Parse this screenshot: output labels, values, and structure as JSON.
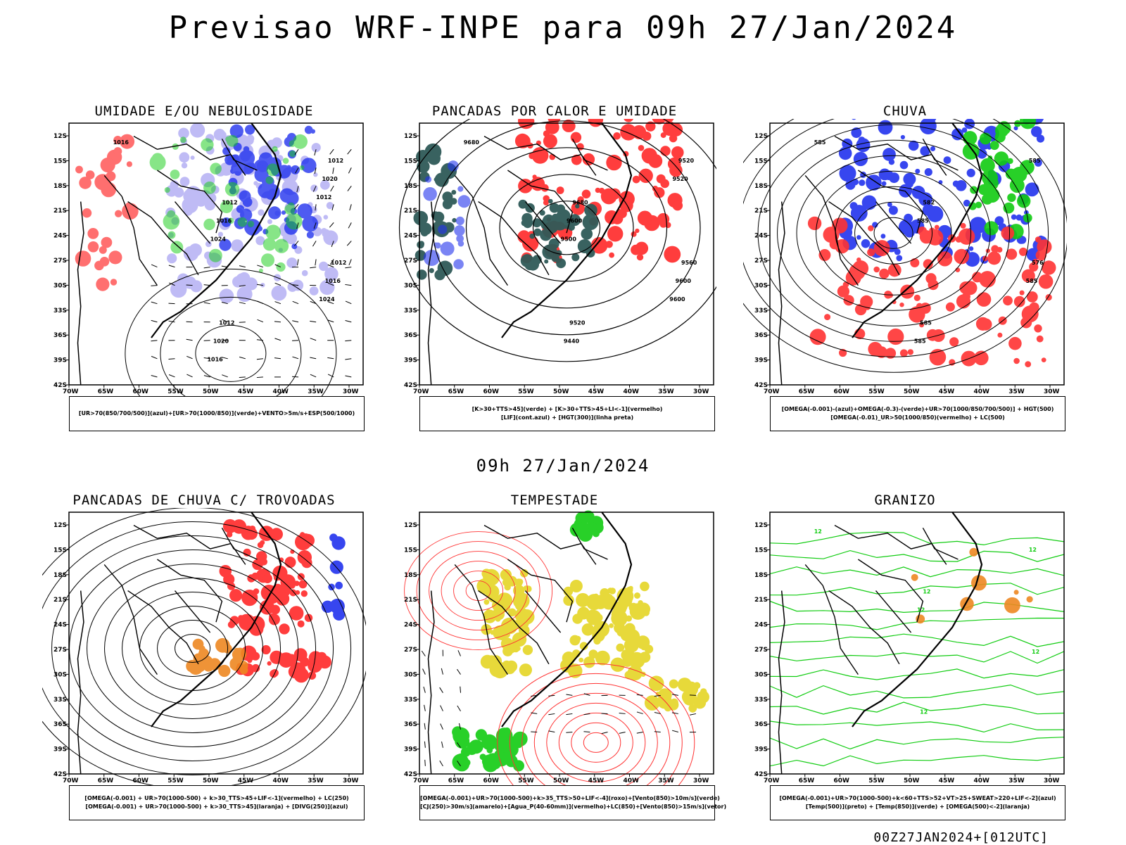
{
  "header": {
    "title": "Previsao WRF-INPE  para 09h 27/Jan/2024"
  },
  "mid_title": "09h 27/Jan/2024",
  "footer": "00Z27JAN2024+[012UTC]",
  "axes": {
    "lat": [
      "12S",
      "15S",
      "18S",
      "21S",
      "24S",
      "27S",
      "30S",
      "33S",
      "36S",
      "39S",
      "42S"
    ],
    "lon": [
      "70W",
      "65W",
      "60W",
      "55W",
      "50W",
      "45W",
      "40W",
      "35W",
      "30W"
    ]
  },
  "panels": [
    {
      "title": "UMIDADE E/OU NEBULOSIDADE",
      "legend": [
        "[UR>70(850/700/500)](azul)+[UR>70(1000/850)](verde)+VENTO>5m/s+ESP(500/1000)"
      ],
      "contour_labels": [
        "1016",
        "1012",
        "1012",
        "1012",
        "1012",
        "1016",
        "1016",
        "1020",
        "1020",
        "1024",
        "1024",
        "1016",
        "1012"
      ]
    },
    {
      "title": "PANCADAS POR CALOR E UMIDADE",
      "legend": [
        "[K>30+TTS>45](verde) + [K>30+TTS>45+LI<-1](vermelho)",
        "[LIF](cont.azul) + [HGT(300)](linha preta)"
      ],
      "contour_labels": [
        "9680",
        "9680",
        "9560",
        "9520",
        "9520",
        "9600",
        "9600",
        "9440",
        "9520",
        "9500",
        "9600"
      ]
    },
    {
      "title": "CHUVA",
      "legend": [
        "[OMEGA(-0.001)-(azul)+OMEGA(-0.3)-(verde)+UR>70(1000/850/700/500)] + HGT(500)",
        "[OMEGA(-0.01)_UR>50(1000/850)(vermelho) + LC(500)"
      ],
      "contour_labels": [
        "585",
        "582",
        "576",
        "585",
        "585",
        "585",
        "585",
        "585"
      ]
    },
    {
      "title": "PANCADAS DE CHUVA C/ TROVOADAS",
      "legend": [
        "[OMEGA(-0.001) + UR>70(1000-500) + k>30_TTS>45+LIF<-1](vermelho) + LC(250)",
        "[OMEGA(-0.001) + UR>70(1000-500) + k>30_TTS>45](laranja) + [DIVG(250)](azul)"
      ],
      "contour_labels": []
    },
    {
      "title": "TEMPESTADE",
      "legend": [
        "[OMEGA(-0.001)+UR>70(1000-500)+k>35_TTS>50+LIF<-4](roxo)+[Vento(850)>10m/s](verde)",
        "[CJ(250)>30m/s](amarelo)+[Agua_P(40-60mm)](vermelho)+LC(850)+[Vento(850)>15m/s](vetor)"
      ],
      "contour_labels": []
    },
    {
      "title": "GRANIZO",
      "legend": [
        "[OMEGA(-0.001)+UR>70(1000-500)+k<60+TTS>52+VT>25+SWEAT>220+LIF<-2](azul)",
        "[Temp(500)](preto) + [Temp(850)](verde) + [OMEGA(500)<-2](laranja)"
      ],
      "contour_labels": [
        "12",
        "12",
        "12",
        "12",
        "12",
        "12"
      ]
    }
  ],
  "colors": {
    "blue": "#2233ee",
    "lightblue": "#b9b4f4",
    "green": "#11cc11",
    "red": "#ff3333",
    "orange": "#ee8822",
    "yellow": "#e6d830",
    "teal": "#2f5a58"
  }
}
